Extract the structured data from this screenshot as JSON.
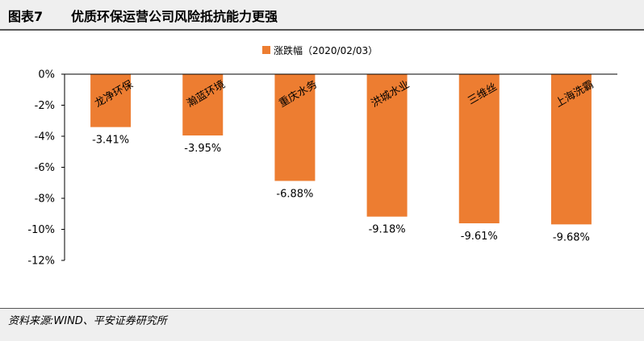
{
  "header": {
    "figure_number": "图表7",
    "title": "优质环保运营公司风险抵抗能力更强"
  },
  "footer": {
    "source": "资料来源:WIND、平安证券研究所"
  },
  "colors": {
    "bar": "#ED7D31",
    "axis": "#000000"
  },
  "chart_data": {
    "type": "bar",
    "title": "",
    "legend": {
      "label": "涨跌幅（2020/02/03）",
      "position": "top-center"
    },
    "categories": [
      "龙净环保",
      "瀚蓝环境",
      "重庆水务",
      "洪城水业",
      "三维丝",
      "上海洗霸"
    ],
    "values": [
      -3.41,
      -3.95,
      -6.88,
      -9.18,
      -9.61,
      -9.68
    ],
    "data_labels": [
      "-3.41%",
      "-3.95%",
      "-6.88%",
      "-9.18%",
      "-9.61%",
      "-9.68%"
    ],
    "ylim": [
      -12,
      0
    ],
    "yticks": [
      0,
      -2,
      -4,
      -6,
      -8,
      -10,
      -12
    ],
    "ytick_labels": [
      "0%",
      "-2%",
      "-4%",
      "-6%",
      "-8%",
      "-10%",
      "-12%"
    ],
    "xlabel": "",
    "ylabel": "",
    "grid": false
  }
}
